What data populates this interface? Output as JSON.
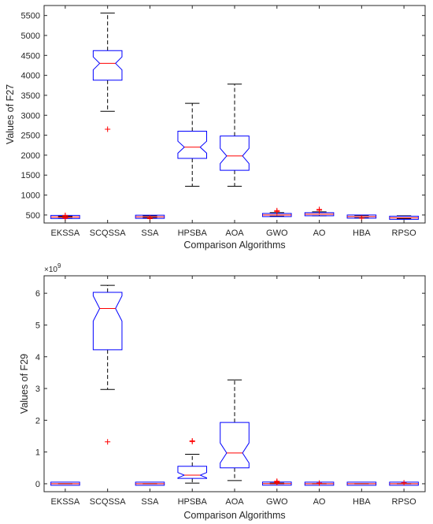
{
  "chart_data": [
    {
      "type": "box",
      "xlabel": "Comparison Algorithms",
      "ylabel": "Values of F27",
      "ylim": [
        300,
        5750
      ],
      "yticks": [
        500,
        1000,
        1500,
        2000,
        2500,
        3000,
        3500,
        4000,
        4500,
        5000,
        5500
      ],
      "notched": true,
      "colors": {
        "box": "#0000ff",
        "median": "#ff0000",
        "outlier": "#ff0000",
        "whisker": "#000000"
      },
      "categories": [
        "EKSSA",
        "SCQSSA",
        "SSA",
        "HPSBA",
        "AOA",
        "GWO",
        "AO",
        "HBA",
        "RPSO"
      ],
      "boxes": [
        {
          "min": 440,
          "q1": 440,
          "median": 450,
          "q3": 460,
          "max": 470,
          "outliers": [
            420,
            430,
            480,
            490
          ]
        },
        {
          "min": 3100,
          "q1": 3880,
          "median": 4300,
          "q3": 4620,
          "max": 5560,
          "outliers": [
            2650
          ]
        },
        {
          "min": 430,
          "q1": 445,
          "median": 455,
          "q3": 465,
          "max": 480,
          "outliers": [
            410,
            420
          ]
        },
        {
          "min": 1220,
          "q1": 1920,
          "median": 2200,
          "q3": 2600,
          "max": 3300,
          "outliers": []
        },
        {
          "min": 1220,
          "q1": 1620,
          "median": 1980,
          "q3": 2480,
          "max": 3780,
          "outliers": []
        },
        {
          "min": 470,
          "q1": 485,
          "median": 500,
          "q3": 515,
          "max": 560,
          "outliers": [
            590,
            610
          ]
        },
        {
          "min": 480,
          "q1": 500,
          "median": 520,
          "q3": 540,
          "max": 580,
          "outliers": [
            620,
            640
          ]
        },
        {
          "min": 430,
          "q1": 450,
          "median": 460,
          "q3": 475,
          "max": 490,
          "outliers": [
            420
          ]
        },
        {
          "min": 410,
          "q1": 415,
          "median": 430,
          "q3": 470,
          "max": 480,
          "outliers": []
        }
      ]
    },
    {
      "type": "box",
      "xlabel": "Comparison Algorithms",
      "ylabel": "Values of F29",
      "exponent_label": "×10",
      "exponent_power": "9",
      "ylim": [
        -0.25,
        6.55
      ],
      "yticks": [
        0,
        1,
        2,
        3,
        4,
        5,
        6
      ],
      "notched": true,
      "colors": {
        "box": "#0000ff",
        "median": "#ff0000",
        "outlier": "#ff0000",
        "whisker": "#000000"
      },
      "categories": [
        "EKSSA",
        "SCQSSA",
        "SSA",
        "HPSBA",
        "AOA",
        "GWO",
        "AO",
        "HBA",
        "RPSO"
      ],
      "boxes": [
        {
          "min": 0.0,
          "q1": 0.0,
          "median": 0.0,
          "q3": 0.0,
          "max": 0.0,
          "outliers": []
        },
        {
          "min": 2.97,
          "q1": 4.22,
          "median": 5.52,
          "q3": 6.03,
          "max": 6.25,
          "outliers": [
            1.32
          ]
        },
        {
          "min": 0.0,
          "q1": 0.0,
          "median": 0.0,
          "q3": 0.0,
          "max": 0.0,
          "outliers": []
        },
        {
          "min": 0.02,
          "q1": 0.17,
          "median": 0.27,
          "q3": 0.55,
          "max": 0.93,
          "outliers": [
            1.33,
            1.35
          ]
        },
        {
          "min": 0.1,
          "q1": 0.5,
          "median": 0.97,
          "q3": 1.93,
          "max": 3.27,
          "outliers": []
        },
        {
          "min": 0.0,
          "q1": 0.0,
          "median": 0.005,
          "q3": 0.01,
          "max": 0.02,
          "outliers": [
            0.04,
            0.06,
            0.08
          ]
        },
        {
          "min": 0.0,
          "q1": 0.0,
          "median": 0.0,
          "q3": 0.0,
          "max": 0.0,
          "outliers": [
            0.02
          ]
        },
        {
          "min": 0.0,
          "q1": 0.0,
          "median": 0.0,
          "q3": 0.0,
          "max": 0.0,
          "outliers": []
        },
        {
          "min": 0.0,
          "q1": 0.0,
          "median": 0.0,
          "q3": 0.0,
          "max": 0.0,
          "outliers": [
            0.03
          ]
        }
      ]
    }
  ]
}
